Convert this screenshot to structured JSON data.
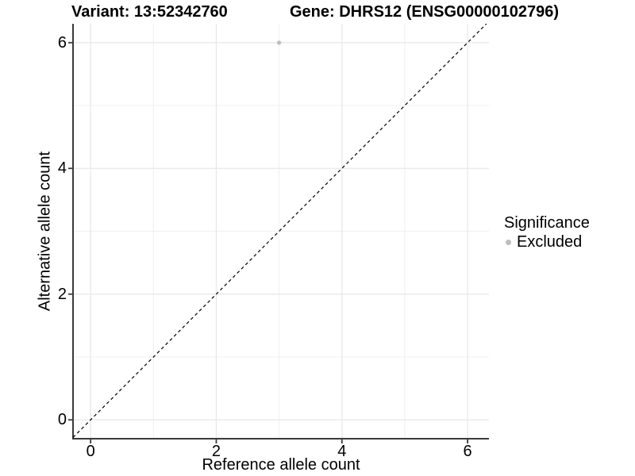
{
  "header": {
    "variant_title": "Variant: 13:52342760",
    "gene_title": "Gene: DHRS12 (ENSG00000102796)"
  },
  "chart_data": {
    "type": "scatter",
    "xlabel": "Reference allele count",
    "ylabel": "Alternative allele count",
    "xlim": [
      -0.28,
      6.34
    ],
    "ylim": [
      -0.3,
      6.3
    ],
    "x_ticks": [
      0,
      2,
      4,
      6
    ],
    "y_ticks": [
      0,
      2,
      4,
      6
    ],
    "x_minor_ticks": [
      1,
      3,
      5
    ],
    "y_minor_ticks": [
      1,
      3,
      5
    ],
    "grid": "on",
    "identity_line": {
      "equation": "y = x",
      "style": "dashed",
      "color": "#000000"
    },
    "series": [
      {
        "name": "Excluded",
        "color": "#bebebe",
        "points": [
          {
            "x": 3,
            "y": 6
          }
        ]
      }
    ],
    "legend": {
      "position": "right",
      "title": "Significance",
      "entries": [
        {
          "label": "Excluded",
          "color": "#bebebe"
        }
      ]
    },
    "colors": {
      "grid_major": "#e8e8e8",
      "grid_minor": "#f0f0f0",
      "axis_line": "#3a3a3a",
      "background": "#ffffff"
    }
  }
}
